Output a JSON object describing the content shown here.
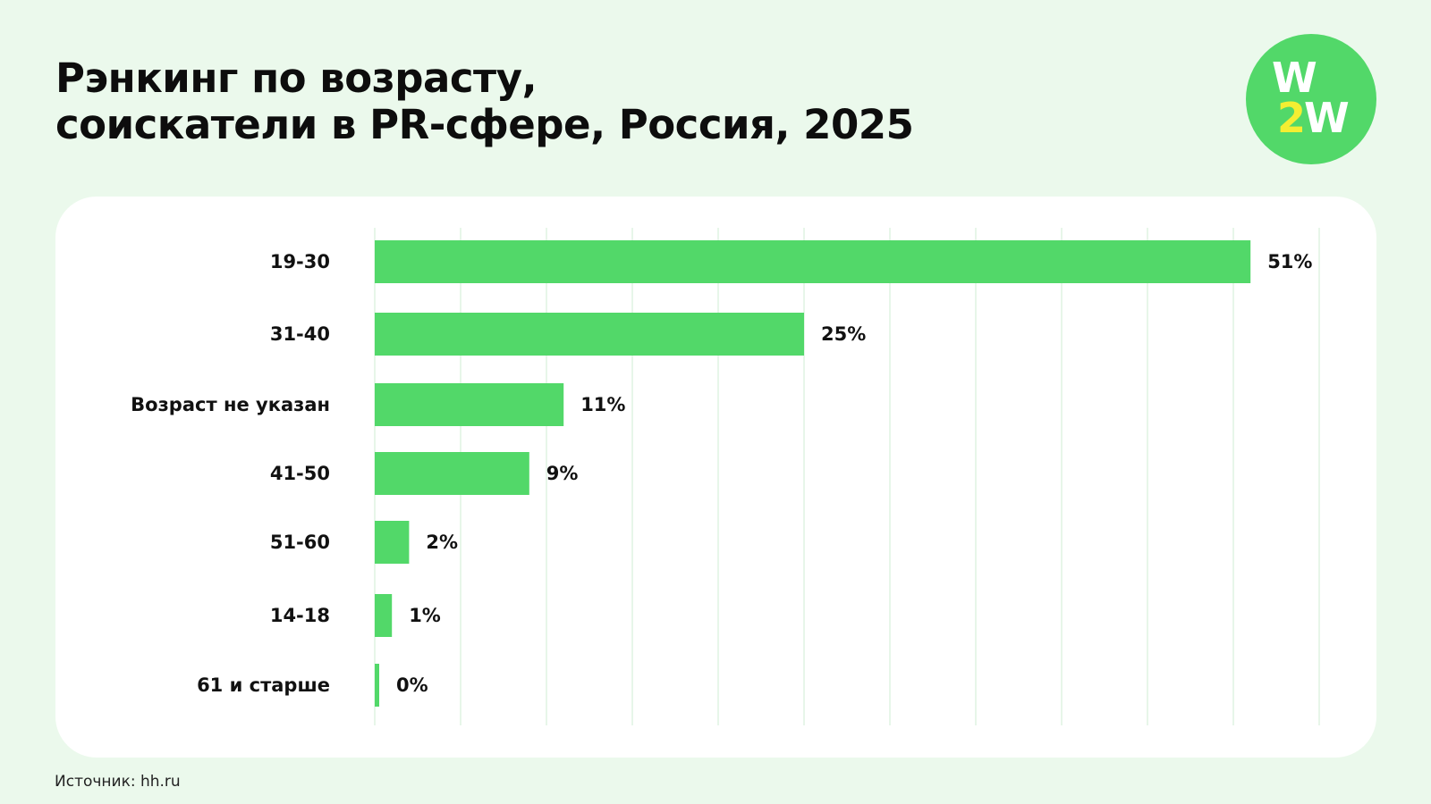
{
  "title": {
    "line1": "Рэнкинг по возрасту,",
    "line2": "соискатели в PR-сфере, Россия, 2025"
  },
  "logo": {
    "line1": "W",
    "digit": "2",
    "letter": "W"
  },
  "source": "Источник: hh.ru",
  "colors": {
    "background": "#ebf9ec",
    "panel": "#ffffff",
    "bar": "#52d869",
    "grid": "#dff3e2",
    "logo_circle": "#52d869",
    "logo_accent": "#f4ee32"
  },
  "chart_data": {
    "type": "bar",
    "orientation": "horizontal",
    "categories": [
      "19-30",
      "31-40",
      "Возраст не указан",
      "41-50",
      "51-60",
      "14-18",
      "61 и старше"
    ],
    "values": [
      51,
      25,
      11,
      9,
      2,
      1,
      0
    ],
    "value_labels": [
      "51%",
      "25%",
      "11%",
      "9%",
      "2%",
      "1%",
      "0%"
    ],
    "unit": "%",
    "xlim": [
      0,
      55
    ],
    "grid": true,
    "gridlines": [
      0,
      5,
      10,
      15,
      20,
      25,
      30,
      35,
      40,
      45,
      50,
      55
    ],
    "title": "",
    "xlabel": "",
    "ylabel": ""
  }
}
